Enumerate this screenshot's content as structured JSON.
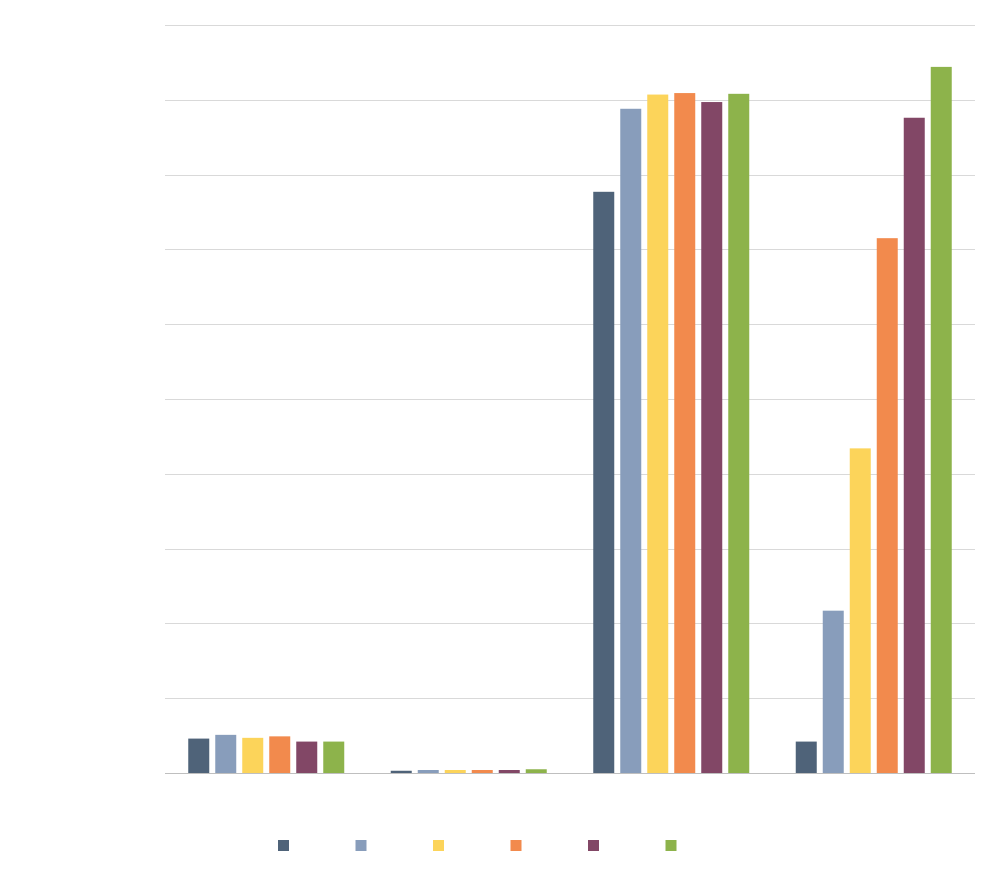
{
  "chart_data": {
    "type": "bar",
    "title": "",
    "xlabel": "",
    "ylabel": "",
    "categories": [
      "",
      "",
      "",
      ""
    ],
    "ylim": [
      0,
      100
    ],
    "grid": true,
    "legend_position": "bottom",
    "series": [
      {
        "color": "#4F6379",
        "values": [
          4.6,
          0.3,
          77.7,
          4.2
        ]
      },
      {
        "color": "#889DBB",
        "values": [
          5.1,
          0.4,
          88.8,
          21.7
        ]
      },
      {
        "color": "#FCD45A",
        "values": [
          4.7,
          0.4,
          90.7,
          43.4
        ]
      },
      {
        "color": "#F28A4D",
        "values": [
          4.9,
          0.4,
          90.9,
          71.5
        ]
      },
      {
        "color": "#824766",
        "values": [
          4.2,
          0.4,
          89.7,
          87.6
        ]
      },
      {
        "color": "#8DB34B",
        "values": [
          4.2,
          0.5,
          90.8,
          94.4
        ]
      }
    ]
  }
}
